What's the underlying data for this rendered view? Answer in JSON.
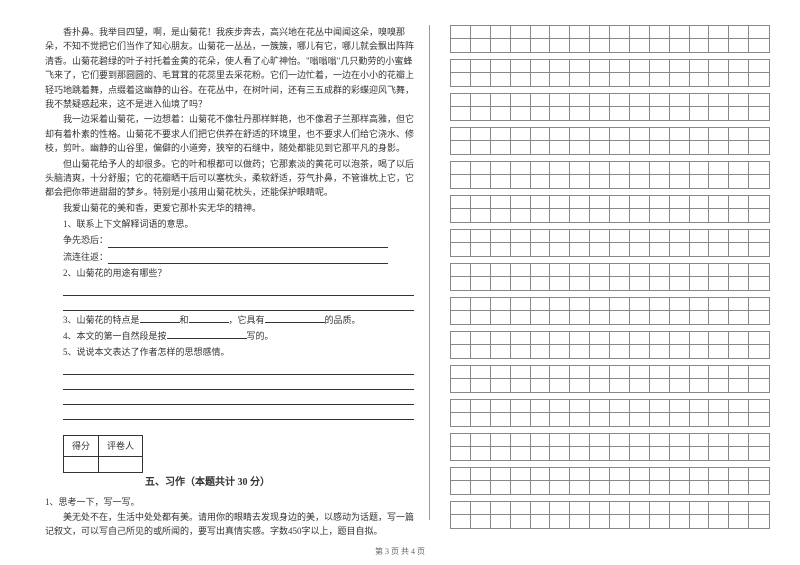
{
  "passage": {
    "p1": "香扑鼻。我举目四望，啊，是山菊花！我疾步奔去，高兴地在花丛中闻闻这朵，嗅嗅那朵，不知不觉把它们当作了知心朋友。山菊花一丛丛，一簇簇，哪儿有它，哪儿就会飘出阵阵清香。山菊花碧绿的叶子衬托着金黄的花朵，使人看了心旷神怡。\"嗡嗡嗡\"几只勤劳的小蜜蜂飞来了，它们要到那圆圆的、毛茸茸的花蕊里去采花粉。它们一边忙着，一边在小小的花瓣上轻巧地跳着舞，点缀着这幽静的山谷。在花丛中，在树叶间，还有三五成群的彩蝶迎风飞舞，我不禁疑惑起来，这不是进入仙境了吗？",
    "p2": "我一边采着山菊花，一边想着：山菊花不像牡丹那样鲜艳，也不像君子兰那样高雅，但它却有着朴素的性格。山菊花不要求人们把它供养在舒适的环境里，也不要求人们给它浇水、修枝，剪叶。幽静的山谷里，偏僻的小道旁，狭窄的石缝中，随处都能见到它那平凡的身影。",
    "p3": "但山菊花给予人的却很多。它的叶和根都可以做药；它那素淡的黄花可以泡茶，喝了以后头脑清爽，十分舒服；它的花瓣晒干后可以塞枕头，柔软舒适，芬气扑鼻，不管谁枕上它，它都会把你带进甜甜的梦乡。特别是小孩用山菊花枕头，还能保护眼睛呢。",
    "p4": "我爱山菊花的美和香，更爱它那朴实无华的精神。"
  },
  "questions": {
    "q1_title": "1、联系上下文解释词语的意思。",
    "q1_a": "争先恐后：",
    "q1_b": "流连往返：",
    "q2": "2、山菊花的用途有哪些？",
    "q3_pre": "3、山菊花的特点是",
    "q3_mid": "和",
    "q3_mid2": "，它具有",
    "q3_end": "的品质。",
    "q4_pre": "4、本文的第一自然段是按",
    "q4_end": "写的。",
    "q5": "5、说说本文表达了作者怎样的思想感情。"
  },
  "score_table": {
    "col1": "得分",
    "col2": "评卷人"
  },
  "section5": {
    "title": "五、习作（本题共计 30 分）",
    "prompt1": "1、思考一下，写一写。",
    "prompt2": "美无处不在，生活中处处都有美。请用你的眼睛去发现身边的美，以感动为话题，写一篇记叙文，可以写自己所见的或所闻的，要写出真情实感。字数450字以上，题目自拟。"
  },
  "footer": "第 3 页 共 4 页",
  "grid": {
    "rows": 15,
    "cols": 16,
    "cell_rows": 2
  }
}
